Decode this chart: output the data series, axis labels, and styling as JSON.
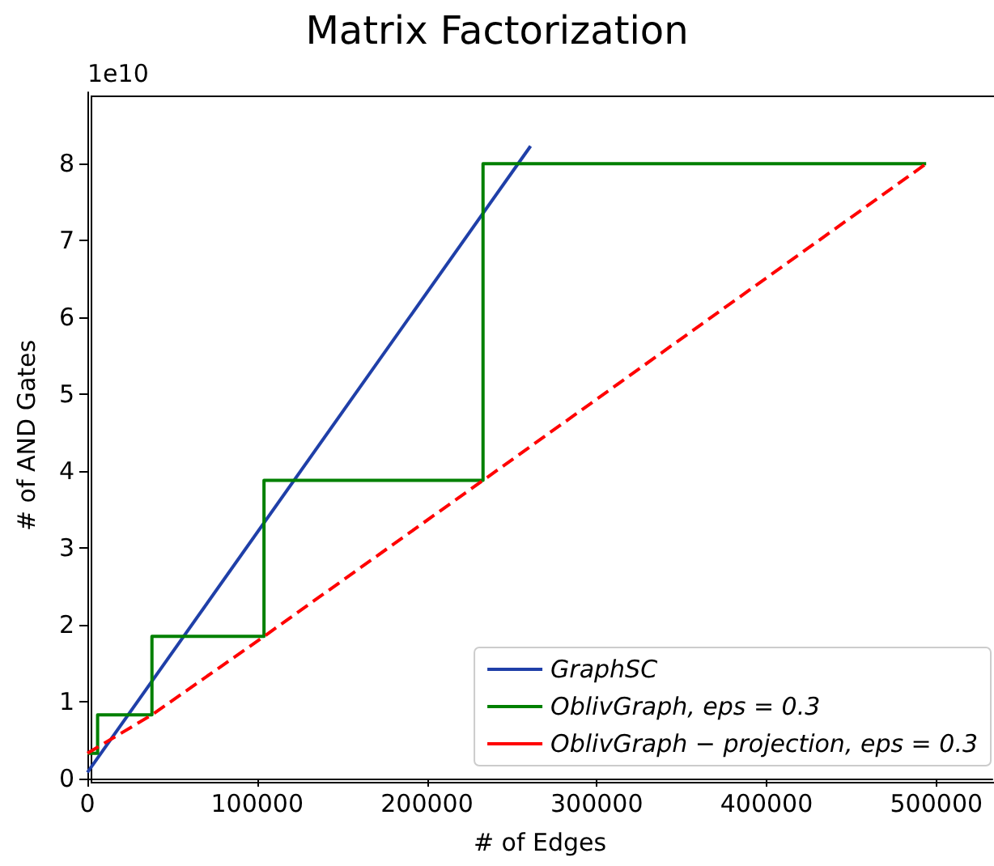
{
  "chart_data": {
    "type": "line",
    "title": "Matrix Factorization",
    "xlabel": "# of Edges",
    "ylabel": "# of AND Gates",
    "annotations": [
      "1e10"
    ],
    "xlim": [
      0,
      533000
    ],
    "xticks": [
      0,
      100000,
      200000,
      300000,
      400000,
      500000
    ],
    "ylim": [
      0,
      8.93
    ],
    "yticks": [
      0,
      1,
      2,
      3,
      4,
      5,
      6,
      7,
      8
    ],
    "grid": false,
    "legend": "bottom right",
    "marker": "none",
    "series": [
      {
        "name": "GraphSC",
        "color": "#1f3fa8",
        "line_style": "solid",
        "x": [
          0,
          261000
        ],
        "values": [
          0.08,
          8.23
        ]
      },
      {
        "name": "OblivGraph, eps = 0.3",
        "type": "step",
        "color": "#008000",
        "line_style": "solid",
        "x": [
          0,
          6000,
          38000,
          104000,
          233000,
          494000
        ],
        "values": [
          0.33,
          0.83,
          1.85,
          3.88,
          8.0,
          8.0
        ]
      },
      {
        "name": "OblivGraph − projection, eps = 0.3",
        "color": "#ff0000",
        "line_style": "dashed",
        "x": [
          0,
          38000,
          104000,
          233000,
          494000
        ],
        "values": [
          0.33,
          0.83,
          1.85,
          3.88,
          8.0
        ]
      }
    ]
  }
}
